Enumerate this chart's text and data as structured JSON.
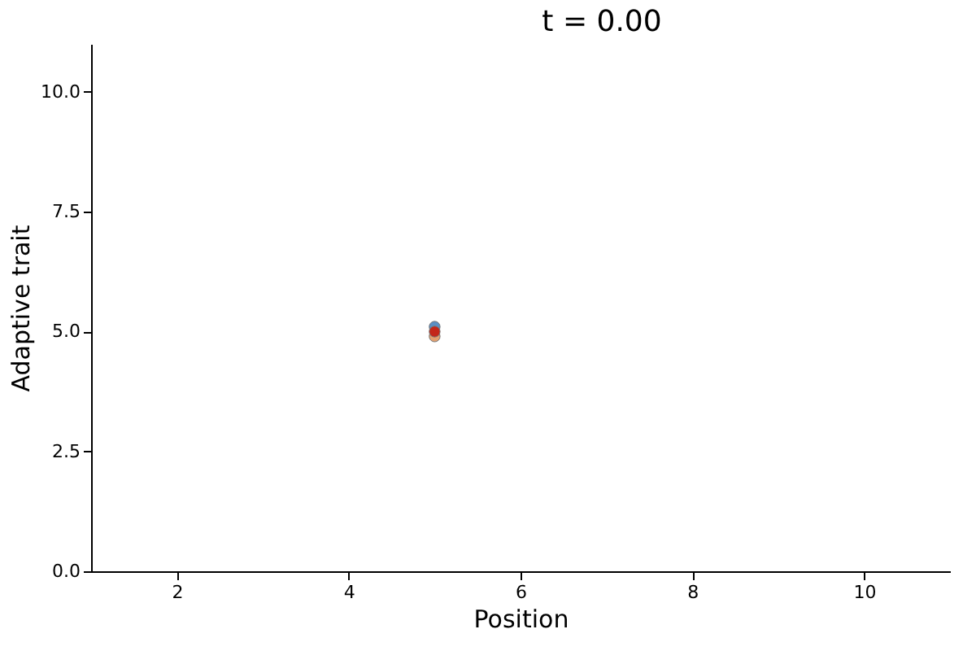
{
  "chart_data": {
    "type": "scatter",
    "title": "t = 0.00",
    "xlabel": "Position",
    "ylabel": "Adaptive trait",
    "xlim": [
      1,
      11
    ],
    "xticks": [
      2,
      4,
      6,
      8,
      10
    ],
    "ylim": [
      0,
      11
    ],
    "yticks": [
      {
        "value": 0,
        "label": "0.0"
      },
      {
        "value": 2.5,
        "label": "2.5"
      },
      {
        "value": 5,
        "label": "5.0"
      },
      {
        "value": 7.5,
        "label": "7.5"
      },
      {
        "value": 10,
        "label": "10.0"
      }
    ],
    "x": [
      5
    ],
    "grid": false,
    "legend": false,
    "marker": "circle",
    "series": [
      {
        "color": "#5a8fc4",
        "values": [
          5.1
        ]
      },
      {
        "color": "#e3a06f",
        "values": [
          4.9
        ]
      },
      {
        "color": "#c3271a",
        "values": [
          5.0
        ]
      }
    ]
  }
}
